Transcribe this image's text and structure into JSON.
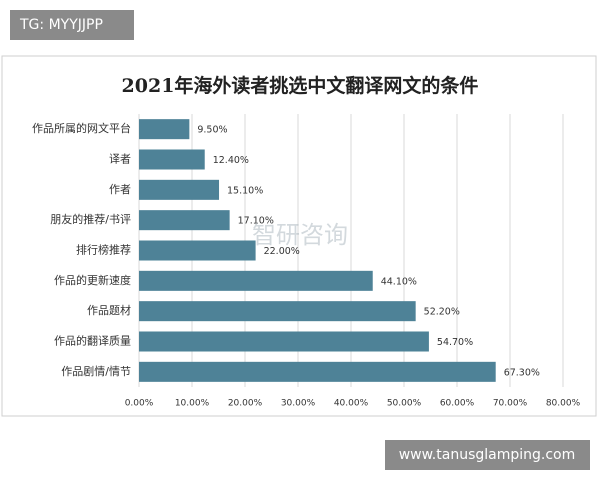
{
  "badge_top": "TG: MYYJJPP",
  "badge_bottom": "www.tanusglamping.com",
  "watermark": "智研咨询",
  "chart_data": {
    "type": "bar",
    "orientation": "horizontal",
    "title": "2021年海外读者挑选中文翻译网文的条件",
    "categories": [
      "作品所属的网文平台",
      "译者",
      "作者",
      "朋友的推荐/书评",
      "排行榜推荐",
      "作品的更新速度",
      "作品题材",
      "作品的翻译质量",
      "作品剧情/情节"
    ],
    "values": [
      9.5,
      12.4,
      15.1,
      17.1,
      22.0,
      44.1,
      52.2,
      54.7,
      67.3
    ],
    "value_labels": [
      "9.50%",
      "12.40%",
      "15.10%",
      "17.10%",
      "22.00%",
      "44.10%",
      "52.20%",
      "54.70%",
      "67.30%"
    ],
    "color": "#4e8297",
    "xlim": [
      0,
      80
    ],
    "xticks": [
      {
        "value": 0,
        "label": "0.00%"
      },
      {
        "value": 10,
        "label": "10.00%"
      },
      {
        "value": 20,
        "label": "20.00%"
      },
      {
        "value": 30,
        "label": "30.00%"
      },
      {
        "value": 40,
        "label": "40.00%"
      },
      {
        "value": 50,
        "label": "50.00%"
      },
      {
        "value": 60,
        "label": "60.00%"
      },
      {
        "value": 70,
        "label": "70.00%"
      },
      {
        "value": 80,
        "label": "80.00%"
      }
    ],
    "grid": true
  }
}
